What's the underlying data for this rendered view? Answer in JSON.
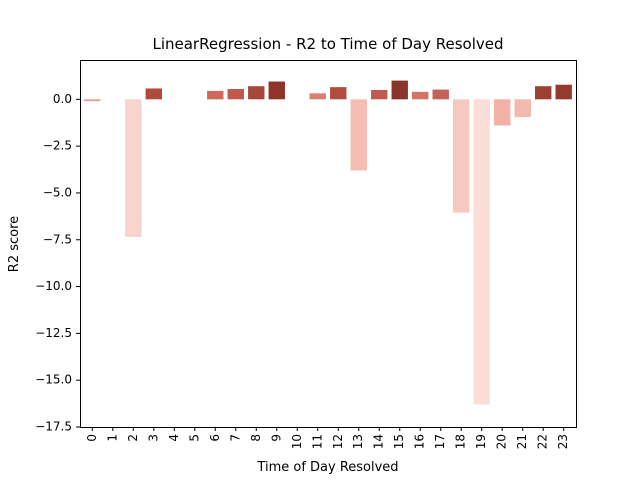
{
  "chart_data": {
    "type": "bar",
    "title": "LinearRegression - R2 to Time of Day Resolved",
    "xlabel": "Time of Day Resolved",
    "ylabel": "R2 score",
    "categories": [
      "0",
      "1",
      "2",
      "3",
      "4",
      "5",
      "6",
      "7",
      "8",
      "9",
      "10",
      "11",
      "12",
      "13",
      "14",
      "15",
      "16",
      "17",
      "18",
      "19",
      "20",
      "21",
      "22",
      "23"
    ],
    "values": [
      -0.1,
      0,
      -7.35,
      0.58,
      0,
      0,
      0.45,
      0.55,
      0.7,
      0.95,
      0,
      0.32,
      0.65,
      -3.8,
      0.5,
      1.0,
      0.4,
      0.52,
      -6.05,
      -16.3,
      -1.4,
      -0.95,
      0.7,
      0.78
    ],
    "bar_colors": [
      "#e99d8f",
      "#ffffff",
      "#f9d3cd",
      "#b04a3f",
      "#ffffff",
      "#ffffff",
      "#cd6a5d",
      "#c0584c",
      "#a9463b",
      "#8e3428",
      "#ffffff",
      "#d97e70",
      "#b24c40",
      "#f5bdb3",
      "#c25b4e",
      "#8a352a",
      "#d07567",
      "#c5615a",
      "#f7c8c0",
      "#fbddd8",
      "#f2b0a6",
      "#f4b8ae",
      "#9e3f33",
      "#943a2f"
    ],
    "yticks": [
      0.0,
      -2.5,
      -5.0,
      -7.5,
      -10.0,
      -12.5,
      -15.0,
      -17.5
    ],
    "ytick_labels": [
      "0.0",
      "−2.5",
      "−5.0",
      "−7.5",
      "−10.0",
      "−12.5",
      "−15.0",
      "−17.5"
    ],
    "ylim": [
      -17.5,
      2.1
    ],
    "grid": false,
    "legend": "none"
  }
}
